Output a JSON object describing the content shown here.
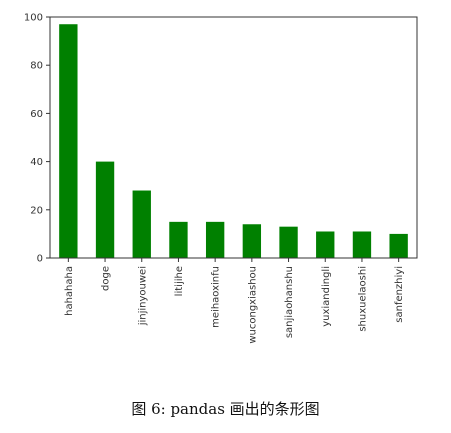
{
  "chart_data": {
    "type": "bar",
    "categories": [
      "hahahaha",
      "doge",
      "jinjinyouwei",
      "litijihe",
      "meihaoxinfu",
      "wucongxiashou",
      "sanjiaohanshu",
      "yuxiandingli",
      "shuxuelaoshi",
      "sanfenzhiyi"
    ],
    "values": [
      97,
      40,
      28,
      15,
      15,
      14,
      13,
      11,
      11,
      10
    ],
    "ylim": [
      0,
      100
    ],
    "yticks": [
      0,
      20,
      40,
      60,
      80,
      100
    ],
    "title": "",
    "xlabel": "",
    "ylabel": "",
    "grid": false,
    "bar_color": "#008000"
  },
  "caption": "图 6: pandas 画出的条形图"
}
